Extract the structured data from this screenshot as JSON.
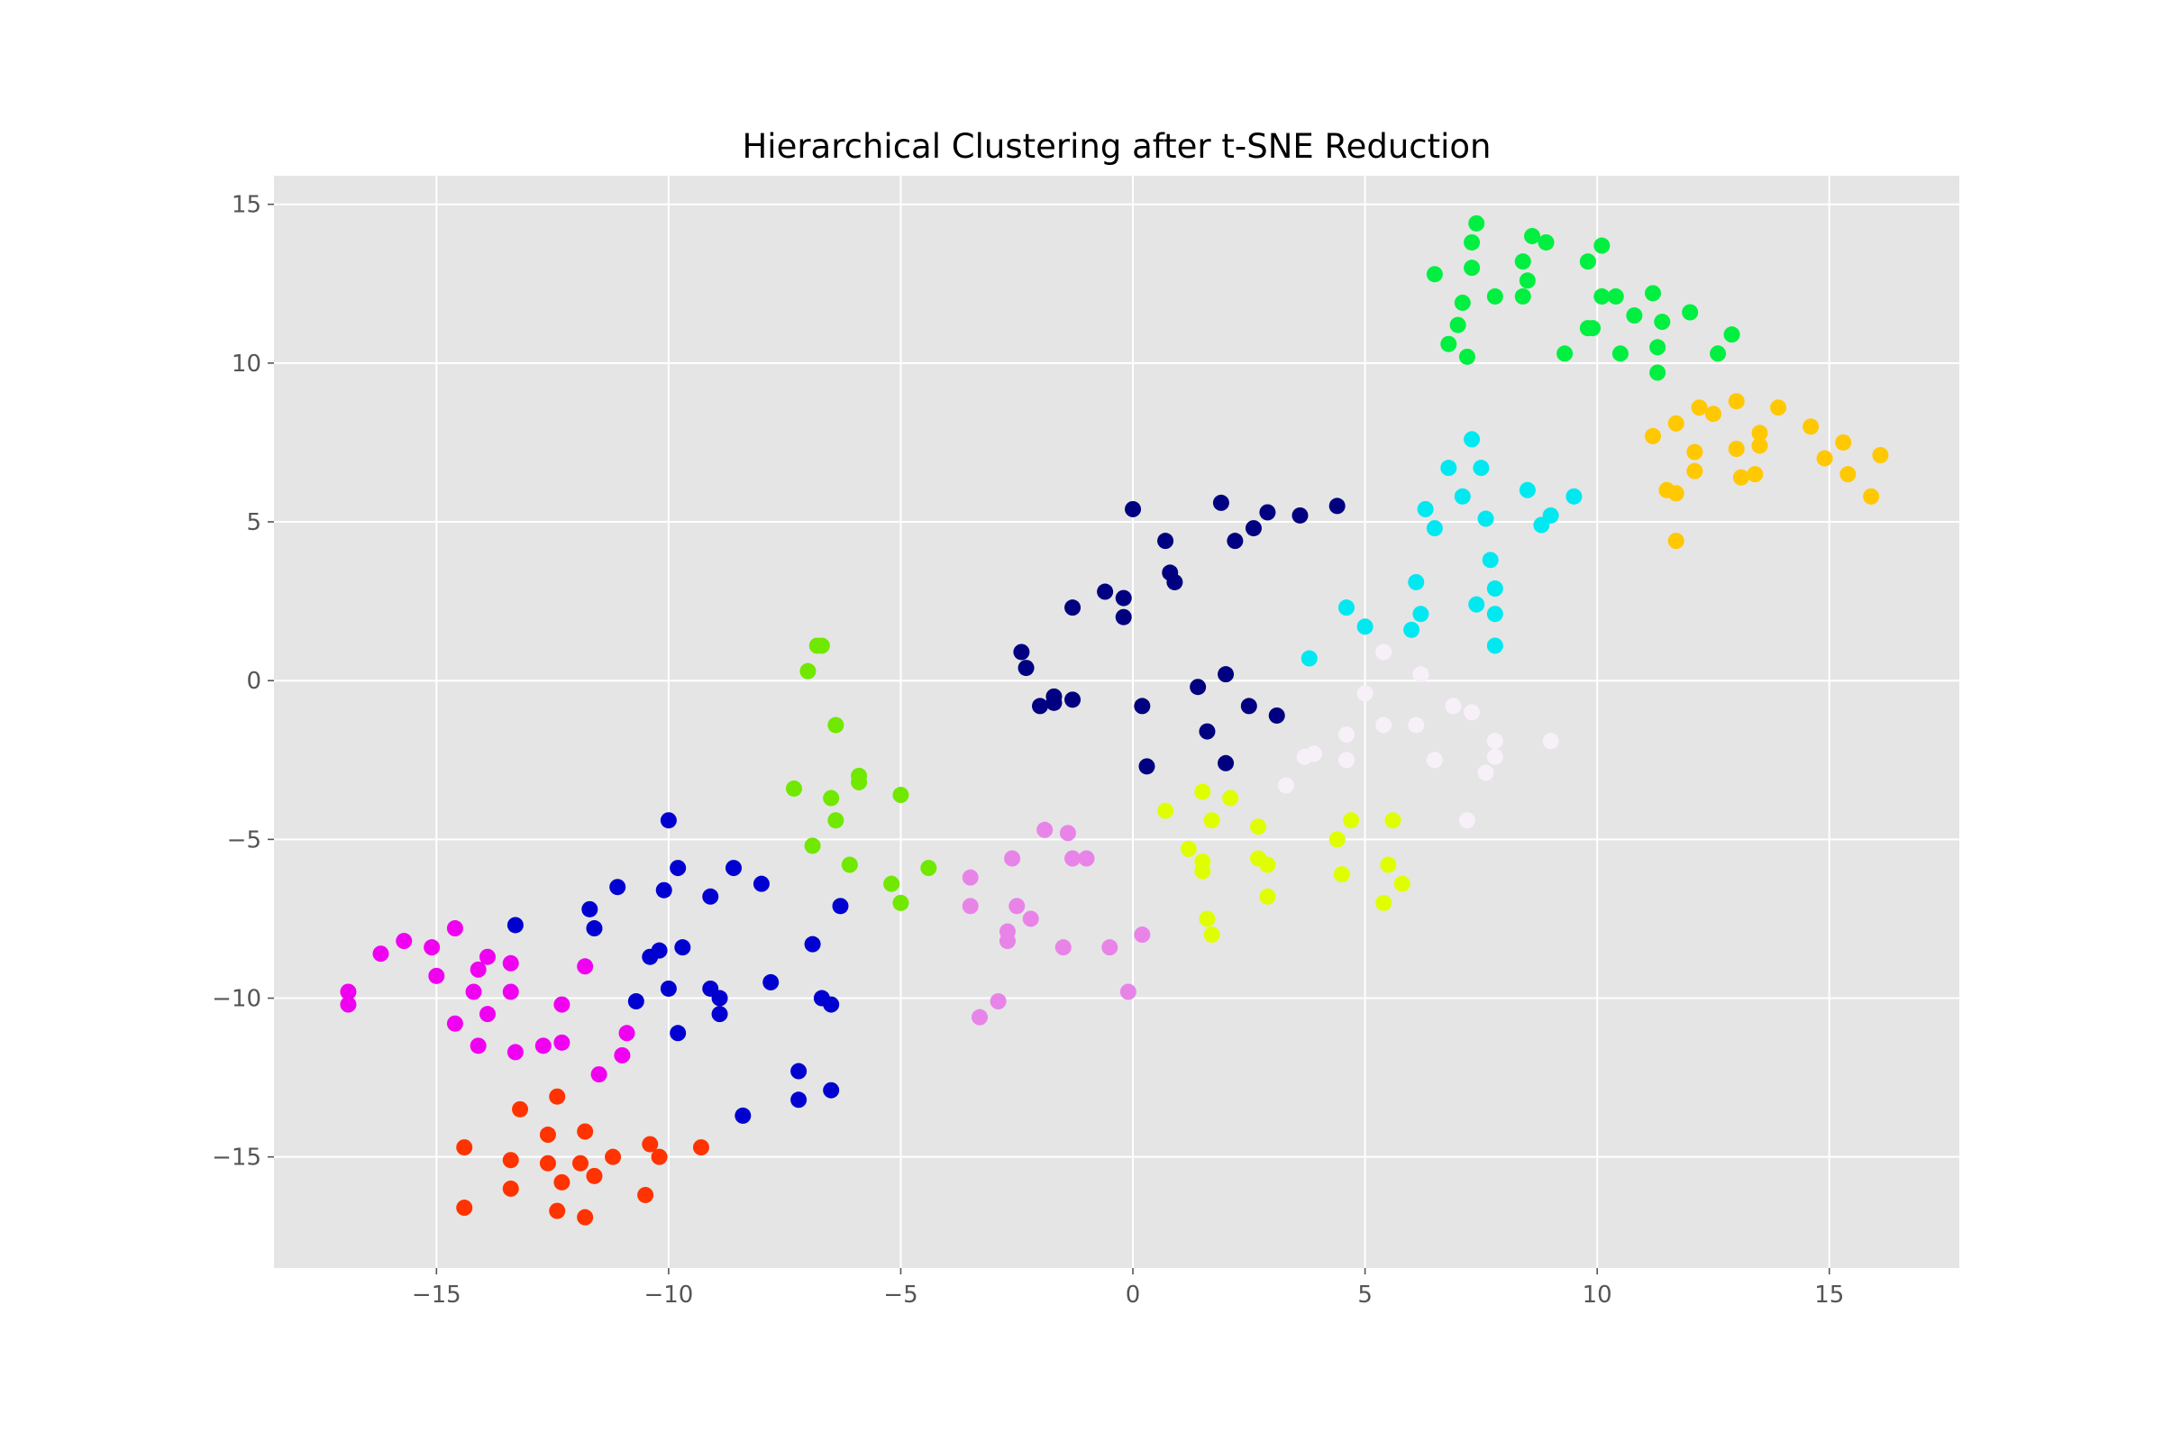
{
  "chart_data": {
    "type": "scatter",
    "title": "Hierarchical Clustering after t-SNE Reduction",
    "xlabel": "",
    "ylabel": "",
    "xlim": [
      -18.5,
      17.8
    ],
    "ylim": [
      -18.5,
      15.9
    ],
    "grid": true,
    "legend": "none",
    "xticks": [
      -15,
      -10,
      -5,
      0,
      5,
      10,
      15
    ],
    "yticks": [
      -15,
      -10,
      -5,
      0,
      5,
      10,
      15
    ],
    "xtick_labels": [
      "−15",
      "−10",
      "−5",
      "0",
      "5",
      "10",
      "15"
    ],
    "ytick_labels": [
      "−15",
      "−10",
      "−5",
      "0",
      "5",
      "10",
      "15"
    ],
    "series": [
      {
        "color": "#00ef40",
        "points": [
          [
            7.4,
            14.4
          ],
          [
            8.6,
            14.0
          ],
          [
            8.9,
            13.8
          ],
          [
            7.3,
            13.8
          ],
          [
            10.1,
            13.7
          ],
          [
            9.8,
            13.2
          ],
          [
            8.4,
            13.2
          ],
          [
            7.3,
            13.0
          ],
          [
            6.5,
            12.8
          ],
          [
            8.5,
            12.6
          ],
          [
            11.2,
            12.2
          ],
          [
            10.1,
            12.1
          ],
          [
            10.4,
            12.1
          ],
          [
            8.4,
            12.1
          ],
          [
            7.8,
            12.1
          ],
          [
            7.1,
            11.9
          ],
          [
            12.0,
            11.6
          ],
          [
            10.8,
            11.5
          ],
          [
            11.4,
            11.3
          ],
          [
            7.0,
            11.2
          ],
          [
            9.9,
            11.1
          ],
          [
            9.8,
            11.1
          ],
          [
            12.9,
            10.9
          ],
          [
            6.8,
            10.6
          ],
          [
            11.3,
            10.5
          ],
          [
            9.3,
            10.3
          ],
          [
            10.5,
            10.3
          ],
          [
            12.6,
            10.3
          ],
          [
            7.2,
            10.2
          ],
          [
            11.3,
            9.7
          ]
        ]
      },
      {
        "color": "#ffc800",
        "points": [
          [
            13.0,
            8.8
          ],
          [
            13.9,
            8.6
          ],
          [
            12.2,
            8.6
          ],
          [
            12.5,
            8.4
          ],
          [
            11.7,
            8.1
          ],
          [
            14.6,
            8.0
          ],
          [
            13.5,
            7.8
          ],
          [
            11.2,
            7.7
          ],
          [
            15.3,
            7.5
          ],
          [
            13.5,
            7.4
          ],
          [
            13.0,
            7.3
          ],
          [
            12.1,
            7.2
          ],
          [
            16.1,
            7.1
          ],
          [
            14.9,
            7.0
          ],
          [
            12.1,
            6.6
          ],
          [
            15.4,
            6.5
          ],
          [
            13.4,
            6.5
          ],
          [
            13.1,
            6.4
          ],
          [
            11.5,
            6.0
          ],
          [
            11.7,
            5.9
          ],
          [
            15.9,
            5.8
          ],
          [
            11.7,
            4.4
          ]
        ]
      },
      {
        "color": "#00e8f0",
        "points": [
          [
            7.3,
            7.6
          ],
          [
            6.8,
            6.7
          ],
          [
            7.5,
            6.7
          ],
          [
            8.5,
            6.0
          ],
          [
            9.5,
            5.8
          ],
          [
            7.1,
            5.8
          ],
          [
            6.3,
            5.4
          ],
          [
            9.0,
            5.2
          ],
          [
            7.6,
            5.1
          ],
          [
            8.8,
            4.9
          ],
          [
            6.5,
            4.8
          ],
          [
            7.7,
            3.8
          ],
          [
            6.1,
            3.1
          ],
          [
            7.8,
            2.9
          ],
          [
            7.4,
            2.4
          ],
          [
            4.6,
            2.3
          ],
          [
            6.2,
            2.1
          ],
          [
            7.8,
            2.1
          ],
          [
            5.0,
            1.7
          ],
          [
            6.0,
            1.6
          ],
          [
            7.8,
            1.1
          ],
          [
            3.8,
            0.7
          ]
        ]
      },
      {
        "color": "#000080",
        "points": [
          [
            1.9,
            5.6
          ],
          [
            0.0,
            5.4
          ],
          [
            4.4,
            5.5
          ],
          [
            2.9,
            5.3
          ],
          [
            3.6,
            5.2
          ],
          [
            2.6,
            4.8
          ],
          [
            0.7,
            4.4
          ],
          [
            2.2,
            4.4
          ],
          [
            0.8,
            3.4
          ],
          [
            0.9,
            3.1
          ],
          [
            -0.6,
            2.8
          ],
          [
            -0.2,
            2.6
          ],
          [
            -1.3,
            2.3
          ],
          [
            -0.2,
            2.0
          ],
          [
            -2.4,
            0.9
          ],
          [
            -2.3,
            0.4
          ],
          [
            2.0,
            0.2
          ],
          [
            1.4,
            -0.2
          ],
          [
            -1.7,
            -0.5
          ],
          [
            -1.3,
            -0.6
          ],
          [
            -1.7,
            -0.7
          ],
          [
            -2.0,
            -0.8
          ],
          [
            0.2,
            -0.8
          ],
          [
            2.5,
            -0.8
          ],
          [
            3.1,
            -1.1
          ],
          [
            1.6,
            -1.6
          ],
          [
            2.0,
            -2.6
          ],
          [
            0.3,
            -2.7
          ]
        ]
      },
      {
        "color": "#f8f0f8",
        "points": [
          [
            5.4,
            0.9
          ],
          [
            6.2,
            0.2
          ],
          [
            5.0,
            -0.4
          ],
          [
            6.9,
            -0.8
          ],
          [
            7.3,
            -1.0
          ],
          [
            5.4,
            -1.4
          ],
          [
            6.1,
            -1.4
          ],
          [
            4.6,
            -1.7
          ],
          [
            7.8,
            -1.9
          ],
          [
            9.0,
            -1.9
          ],
          [
            3.7,
            -2.4
          ],
          [
            3.9,
            -2.3
          ],
          [
            4.6,
            -2.5
          ],
          [
            6.5,
            -2.5
          ],
          [
            7.8,
            -2.4
          ],
          [
            7.6,
            -2.9
          ],
          [
            3.3,
            -3.3
          ],
          [
            7.2,
            -4.4
          ]
        ]
      },
      {
        "color": "#70e800",
        "points": [
          [
            -6.7,
            1.1
          ],
          [
            -6.8,
            1.1
          ],
          [
            -7.0,
            0.3
          ],
          [
            -6.4,
            -1.4
          ],
          [
            -5.9,
            -3.0
          ],
          [
            -5.9,
            -3.2
          ],
          [
            -7.3,
            -3.4
          ],
          [
            -6.5,
            -3.7
          ],
          [
            -5.0,
            -3.6
          ],
          [
            -6.4,
            -4.4
          ],
          [
            -6.9,
            -5.2
          ],
          [
            -6.1,
            -5.8
          ],
          [
            -4.4,
            -5.9
          ],
          [
            -5.2,
            -6.4
          ],
          [
            -5.0,
            -7.0
          ]
        ]
      },
      {
        "color": "#dfff00",
        "points": [
          [
            0.7,
            -4.1
          ],
          [
            1.5,
            -3.5
          ],
          [
            2.1,
            -3.7
          ],
          [
            1.7,
            -4.4
          ],
          [
            4.7,
            -4.4
          ],
          [
            5.6,
            -4.4
          ],
          [
            2.7,
            -4.6
          ],
          [
            4.4,
            -5.0
          ],
          [
            1.2,
            -5.3
          ],
          [
            1.5,
            -5.7
          ],
          [
            2.7,
            -5.6
          ],
          [
            2.9,
            -5.8
          ],
          [
            5.5,
            -5.8
          ],
          [
            1.5,
            -6.0
          ],
          [
            4.5,
            -6.1
          ],
          [
            5.8,
            -6.4
          ],
          [
            2.9,
            -6.8
          ],
          [
            5.4,
            -7.0
          ],
          [
            1.6,
            -7.5
          ],
          [
            1.7,
            -8.0
          ]
        ]
      },
      {
        "color": "#e884e8",
        "points": [
          [
            -1.9,
            -4.7
          ],
          [
            -1.4,
            -4.8
          ],
          [
            -1.3,
            -5.6
          ],
          [
            -1.0,
            -5.6
          ],
          [
            -2.6,
            -5.6
          ],
          [
            -3.5,
            -6.2
          ],
          [
            -3.5,
            -7.1
          ],
          [
            -2.5,
            -7.1
          ],
          [
            -2.2,
            -7.5
          ],
          [
            -2.7,
            -7.9
          ],
          [
            -2.7,
            -8.2
          ],
          [
            0.2,
            -8.0
          ],
          [
            -1.5,
            -8.4
          ],
          [
            -0.5,
            -8.4
          ],
          [
            -0.1,
            -9.8
          ],
          [
            -2.9,
            -10.1
          ],
          [
            -3.3,
            -10.6
          ]
        ]
      },
      {
        "color": "#0000d0",
        "points": [
          [
            -10.0,
            -4.4
          ],
          [
            -9.8,
            -5.9
          ],
          [
            -8.6,
            -5.9
          ],
          [
            -8.0,
            -6.4
          ],
          [
            -11.1,
            -6.5
          ],
          [
            -10.1,
            -6.6
          ],
          [
            -9.1,
            -6.8
          ],
          [
            -6.3,
            -7.1
          ],
          [
            -11.7,
            -7.2
          ],
          [
            -11.6,
            -7.8
          ],
          [
            -13.3,
            -7.7
          ],
          [
            -9.7,
            -8.4
          ],
          [
            -6.9,
            -8.3
          ],
          [
            -10.2,
            -8.5
          ],
          [
            -10.4,
            -8.7
          ],
          [
            -7.8,
            -9.5
          ],
          [
            -10.0,
            -9.7
          ],
          [
            -9.1,
            -9.7
          ],
          [
            -8.9,
            -10.0
          ],
          [
            -6.7,
            -10.0
          ],
          [
            -6.5,
            -10.2
          ],
          [
            -10.7,
            -10.1
          ],
          [
            -8.9,
            -10.5
          ],
          [
            -9.8,
            -11.1
          ],
          [
            -7.2,
            -12.3
          ],
          [
            -6.5,
            -12.9
          ],
          [
            -7.2,
            -13.2
          ],
          [
            -8.4,
            -13.7
          ]
        ]
      },
      {
        "color": "#f000f0",
        "points": [
          [
            -14.6,
            -7.8
          ],
          [
            -15.7,
            -8.2
          ],
          [
            -16.2,
            -8.6
          ],
          [
            -15.1,
            -8.4
          ],
          [
            -13.9,
            -8.7
          ],
          [
            -13.4,
            -8.9
          ],
          [
            -11.8,
            -9.0
          ],
          [
            -14.1,
            -9.1
          ],
          [
            -15.0,
            -9.3
          ],
          [
            -16.9,
            -9.8
          ],
          [
            -14.2,
            -9.8
          ],
          [
            -13.4,
            -9.8
          ],
          [
            -16.9,
            -10.2
          ],
          [
            -12.3,
            -10.2
          ],
          [
            -13.9,
            -10.5
          ],
          [
            -14.6,
            -10.8
          ],
          [
            -10.9,
            -11.1
          ],
          [
            -12.3,
            -11.4
          ],
          [
            -12.7,
            -11.5
          ],
          [
            -14.1,
            -11.5
          ],
          [
            -13.3,
            -11.7
          ],
          [
            -11.0,
            -11.8
          ],
          [
            -11.5,
            -12.4
          ]
        ]
      },
      {
        "color": "#ff3300",
        "points": [
          [
            -12.4,
            -13.1
          ],
          [
            -13.2,
            -13.5
          ],
          [
            -11.8,
            -14.2
          ],
          [
            -12.6,
            -14.3
          ],
          [
            -10.4,
            -14.6
          ],
          [
            -14.4,
            -14.7
          ],
          [
            -9.3,
            -14.7
          ],
          [
            -10.2,
            -15.0
          ],
          [
            -11.2,
            -15.0
          ],
          [
            -13.4,
            -15.1
          ],
          [
            -12.6,
            -15.2
          ],
          [
            -11.9,
            -15.2
          ],
          [
            -11.6,
            -15.6
          ],
          [
            -12.3,
            -15.8
          ],
          [
            -13.4,
            -16.0
          ],
          [
            -10.5,
            -16.2
          ],
          [
            -14.4,
            -16.6
          ],
          [
            -12.4,
            -16.7
          ],
          [
            -11.8,
            -16.9
          ]
        ]
      }
    ]
  }
}
